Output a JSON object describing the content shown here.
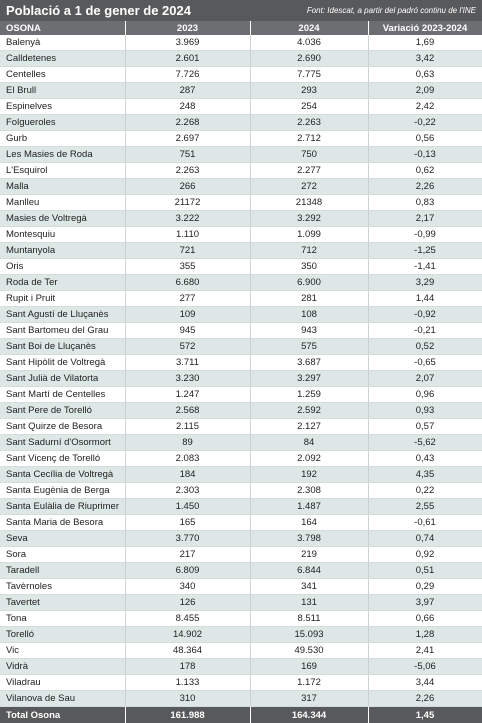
{
  "header": {
    "title": "Població a 1 de gener de 2024",
    "source": "Font: Idescat, a partir del padró continu de l'INE"
  },
  "table": {
    "columns": [
      "OSONA",
      "2023",
      "2024",
      "Variació 2023-2024"
    ],
    "rows": [
      [
        "Balenyà",
        "3.969",
        "4.036",
        "1,69"
      ],
      [
        "Calldetenes",
        "2.601",
        "2.690",
        "3,42"
      ],
      [
        "Centelles",
        "7.726",
        "7.775",
        "0,63"
      ],
      [
        "El Brull",
        "287",
        "293",
        "2,09"
      ],
      [
        "Espinelves",
        "248",
        "254",
        "2,42"
      ],
      [
        "Folgueroles",
        "2.268",
        "2.263",
        "-0,22"
      ],
      [
        "Gurb",
        "2.697",
        "2.712",
        "0,56"
      ],
      [
        "Les Masies de Roda",
        "751",
        "750",
        "-0,13"
      ],
      [
        "L'Esquirol",
        "2.263",
        "2.277",
        "0,62"
      ],
      [
        "Malla",
        "266",
        "272",
        "2,26"
      ],
      [
        "Manlleu",
        "21172",
        "21348",
        "0,83"
      ],
      [
        "Masies de Voltregà",
        "3.222",
        "3.292",
        "2,17"
      ],
      [
        "Montesquiu",
        "1.110",
        "1.099",
        "-0,99"
      ],
      [
        "Muntanyola",
        "721",
        "712",
        "-1,25"
      ],
      [
        "Oris",
        "355",
        "350",
        "-1,41"
      ],
      [
        "Roda de Ter",
        "6.680",
        "6.900",
        "3,29"
      ],
      [
        "Rupit i Pruit",
        "277",
        "281",
        "1,44"
      ],
      [
        "Sant Agustí de Lluçanès",
        "109",
        "108",
        "-0,92"
      ],
      [
        "Sant Bartomeu del Grau",
        "945",
        "943",
        "-0,21"
      ],
      [
        "Sant Boi de Lluçanès",
        "572",
        "575",
        "0,52"
      ],
      [
        "Sant Hipòlit de Voltregà",
        "3.711",
        "3.687",
        "-0,65"
      ],
      [
        "Sant Julià de Vilatorta",
        "3.230",
        "3.297",
        "2,07"
      ],
      [
        "Sant Martí de Centelles",
        "1.247",
        "1.259",
        "0,96"
      ],
      [
        "Sant Pere de Torelló",
        "2.568",
        "2.592",
        "0,93"
      ],
      [
        "Sant Quirze de Besora",
        "2.115",
        "2.127",
        "0,57"
      ],
      [
        "Sant Sadurní d'Osormort",
        "89",
        "84",
        "-5,62"
      ],
      [
        "Sant Vicenç de Torelló",
        "2.083",
        "2.092",
        "0,43"
      ],
      [
        "Santa Cecília de Voltregà",
        "184",
        "192",
        "4,35"
      ],
      [
        "Santa Eugènia de Berga",
        "2.303",
        "2.308",
        "0,22"
      ],
      [
        "Santa Eulàlia de Riuprimer",
        "1.450",
        "1.487",
        "2,55"
      ],
      [
        "Santa Maria de Besora",
        "165",
        "164",
        "-0,61"
      ],
      [
        "Seva",
        "3.770",
        "3.798",
        "0,74"
      ],
      [
        "Sora",
        "217",
        "219",
        "0,92"
      ],
      [
        "Taradell",
        "6.809",
        "6.844",
        "0,51"
      ],
      [
        "Tavèrnoles",
        "340",
        "341",
        "0,29"
      ],
      [
        "Tavertet",
        "126",
        "131",
        "3,97"
      ],
      [
        "Tona",
        "8.455",
        "8.511",
        "0,66"
      ],
      [
        "Torelló",
        "14.902",
        "15.093",
        "1,28"
      ],
      [
        "Vic",
        "48.364",
        "49.530",
        "2,41"
      ],
      [
        "Vidrà",
        "178",
        "169",
        "-5,06"
      ],
      [
        "Viladrau",
        "1.133",
        "1.172",
        "3,44"
      ],
      [
        "Vilanova de Sau",
        "310",
        "317",
        "2,26"
      ]
    ],
    "total": [
      "Total Osona",
      "161.988",
      "164.344",
      "1,45"
    ]
  }
}
